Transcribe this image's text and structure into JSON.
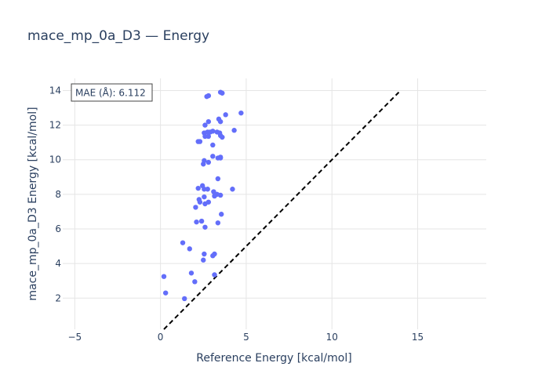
{
  "chart_data": {
    "type": "scatter",
    "title": "mace_mp_0a_D3 — Energy",
    "xlabel": "Reference Energy [kcal/mol]",
    "ylabel": "mace_mp_0a_D3 Energy [kcal/mol]",
    "xlim": [
      -5.7,
      19.0
    ],
    "ylim": [
      0.2,
      14.7
    ],
    "xticks": [
      -5,
      0,
      5,
      10,
      15
    ],
    "xtick_labels": [
      "−5",
      "0",
      "5",
      "10",
      "15"
    ],
    "yticks": [
      2,
      4,
      6,
      8,
      10,
      12,
      14
    ],
    "ytick_labels": [
      "2",
      "4",
      "6",
      "8",
      "10",
      "12",
      "14"
    ],
    "grid": true,
    "annotation": "MAE (Å): 6.112",
    "parity_line": {
      "x": [
        0.2,
        13.9
      ],
      "y": [
        0.2,
        13.9
      ]
    },
    "colors": {
      "points": "#636efa",
      "parity": "#000000",
      "grid": "#e5e5e5",
      "text": "#2a3f5f"
    },
    "series": [
      {
        "x": [
          2.7,
          2.8,
          3.5,
          3.6,
          3.8,
          4.7,
          2.6,
          2.8,
          3.4,
          3.5,
          2.55,
          2.75,
          2.9,
          3.05,
          3.3,
          3.45,
          4.3,
          2.6,
          2.8,
          3.5,
          3.6,
          3.05,
          2.2,
          2.3,
          3.05,
          2.55,
          2.8,
          3.35,
          3.5,
          3.5,
          2.5,
          3.35,
          2.2,
          2.45,
          2.55,
          2.75,
          3.1,
          3.3,
          3.5,
          4.2,
          2.25,
          2.55,
          3.15,
          2.8,
          2.6,
          2.3,
          2.05,
          3.55,
          2.4,
          3.35,
          2.1,
          2.6,
          1.3,
          1.7,
          3.15,
          2.55,
          3.05,
          2.5,
          1.8,
          3.15,
          0.2,
          2.0,
          0.3,
          1.4
        ],
        "y": [
          13.65,
          13.7,
          13.9,
          13.85,
          12.6,
          12.7,
          12.0,
          12.2,
          12.35,
          12.2,
          11.55,
          11.6,
          11.6,
          11.65,
          11.6,
          11.55,
          11.7,
          11.35,
          11.35,
          11.4,
          11.3,
          10.85,
          11.05,
          11.05,
          10.2,
          9.95,
          9.85,
          10.1,
          10.15,
          10.1,
          9.75,
          8.9,
          8.35,
          8.5,
          8.3,
          8.3,
          8.15,
          8.0,
          7.95,
          8.3,
          7.7,
          7.85,
          7.9,
          7.55,
          7.45,
          7.55,
          7.25,
          6.85,
          6.45,
          6.35,
          6.4,
          6.1,
          5.2,
          4.85,
          4.55,
          4.55,
          4.45,
          4.2,
          3.45,
          3.35,
          3.25,
          2.95,
          2.3,
          1.97
        ]
      }
    ]
  }
}
